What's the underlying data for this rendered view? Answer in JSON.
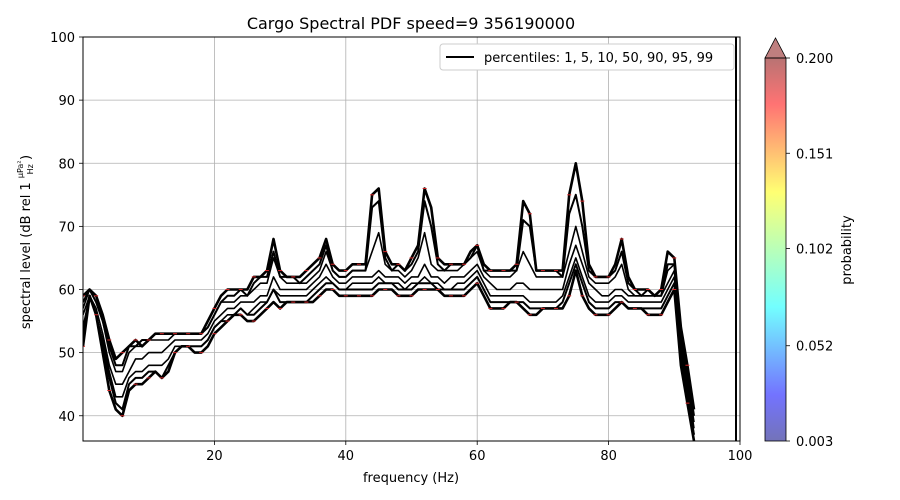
{
  "chart_data": {
    "type": "line",
    "title": "Cargo Spectral PDF speed=9 356190000",
    "xlabel": "frequency (Hz)",
    "ylabel": "spectral level (dB rel 1 μPa²/Hz)",
    "ylabel_prefix": "spectral level (dB rel 1",
    "ylabel_frac_num": "μPa²",
    "ylabel_frac_den": "Hz",
    "ylabel_suffix": ")",
    "xlim": [
      0,
      100
    ],
    "ylim": [
      36,
      100
    ],
    "xticks": [
      20,
      40,
      60,
      80,
      100
    ],
    "yticks": [
      40,
      50,
      60,
      70,
      80,
      90,
      100
    ],
    "grid": true,
    "legend": {
      "position": "top-right",
      "label": "percentiles: 1, 5, 10, 50, 90, 95, 99"
    },
    "colorbar": {
      "label": "probability",
      "ticks": [
        "0.003",
        "0.052",
        "0.102",
        "0.151",
        "0.200"
      ],
      "min": 0.003,
      "max": 0.2,
      "colormap": "jet",
      "extend": "max"
    },
    "x": [
      0,
      1,
      2,
      3,
      4,
      5,
      6,
      7,
      8,
      9,
      10,
      11,
      12,
      13,
      14,
      15,
      16,
      17,
      18,
      19,
      20,
      21,
      22,
      23,
      24,
      25,
      26,
      27,
      28,
      29,
      30,
      31,
      32,
      33,
      34,
      35,
      36,
      37,
      38,
      39,
      40,
      41,
      42,
      43,
      44,
      45,
      46,
      47,
      48,
      49,
      50,
      51,
      52,
      53,
      54,
      55,
      56,
      57,
      58,
      59,
      60,
      61,
      62,
      63,
      64,
      65,
      66,
      67,
      68,
      69,
      70,
      71,
      72,
      73,
      74,
      75,
      76,
      77,
      78,
      79,
      80,
      81,
      82,
      83,
      84,
      85,
      86,
      87,
      88,
      89,
      90,
      91,
      92,
      93
    ],
    "series": [
      {
        "name": "p1",
        "values": [
          51,
          59,
          56,
          50,
          44,
          41,
          40,
          44,
          45,
          45,
          46,
          47,
          46,
          47,
          50,
          51,
          51,
          50,
          50,
          51,
          53,
          54,
          55,
          56,
          56,
          55,
          55,
          56,
          57,
          58,
          57,
          58,
          58,
          58,
          58,
          58,
          59,
          60,
          60,
          59,
          59,
          59,
          59,
          59,
          59,
          60,
          60,
          60,
          59,
          59,
          59,
          60,
          60,
          60,
          60,
          59,
          59,
          59,
          59,
          60,
          61,
          59,
          57,
          57,
          57,
          58,
          58,
          57,
          56,
          56,
          57,
          57,
          57,
          57,
          59,
          63,
          59,
          57,
          56,
          56,
          56,
          57,
          58,
          57,
          57,
          57,
          56,
          56,
          56,
          58,
          60,
          48,
          42,
          36
        ]
      },
      {
        "name": "p5",
        "values": [
          53,
          59,
          56,
          51,
          46,
          42,
          41,
          45,
          46,
          46,
          47,
          47,
          46,
          48,
          50,
          51,
          51,
          51,
          51,
          52,
          54,
          55,
          55,
          56,
          57,
          56,
          56,
          57,
          58,
          60,
          58,
          58,
          58,
          58,
          58,
          59,
          60,
          61,
          61,
          60,
          60,
          60,
          60,
          60,
          60,
          61,
          61,
          61,
          60,
          60,
          60,
          61,
          61,
          61,
          60,
          60,
          60,
          60,
          60,
          61,
          62,
          60,
          58,
          58,
          58,
          58,
          58,
          58,
          57,
          57,
          57,
          57,
          57,
          58,
          61,
          64,
          61,
          58,
          57,
          57,
          57,
          58,
          58,
          57,
          57,
          57,
          57,
          57,
          57,
          59,
          61,
          49,
          43,
          37
        ]
      },
      {
        "name": "p10",
        "values": [
          54,
          59,
          56,
          52,
          47,
          43,
          43,
          46,
          47,
          47,
          48,
          48,
          48,
          49,
          51,
          51,
          51,
          51,
          51,
          52,
          54,
          55,
          56,
          56,
          57,
          56,
          57,
          58,
          58,
          60,
          59,
          59,
          59,
          59,
          59,
          60,
          61,
          62,
          61,
          60,
          60,
          61,
          61,
          61,
          61,
          62,
          61,
          61,
          61,
          60,
          61,
          61,
          62,
          61,
          61,
          60,
          60,
          61,
          61,
          62,
          63,
          61,
          59,
          59,
          59,
          59,
          59,
          59,
          58,
          58,
          58,
          58,
          58,
          59,
          62,
          65,
          62,
          59,
          58,
          58,
          58,
          59,
          59,
          58,
          58,
          58,
          58,
          58,
          58,
          60,
          62,
          50,
          44,
          37
        ]
      },
      {
        "name": "p50",
        "values": [
          56,
          59,
          57,
          53,
          48,
          45,
          45,
          47,
          49,
          49,
          50,
          50,
          50,
          51,
          52,
          52,
          52,
          52,
          52,
          53,
          55,
          56,
          57,
          57,
          58,
          58,
          58,
          59,
          59,
          62,
          60,
          60,
          60,
          60,
          60,
          61,
          62,
          64,
          62,
          61,
          61,
          62,
          62,
          62,
          62,
          63,
          62,
          62,
          62,
          61,
          62,
          62,
          64,
          62,
          62,
          61,
          62,
          62,
          62,
          63,
          64,
          62,
          61,
          60,
          60,
          60,
          61,
          61,
          60,
          60,
          60,
          60,
          60,
          60,
          64,
          67,
          64,
          61,
          60,
          59,
          59,
          60,
          60,
          59,
          59,
          59,
          59,
          59,
          59,
          61,
          63,
          51,
          45,
          38
        ]
      },
      {
        "name": "p90",
        "values": [
          57,
          60,
          58,
          55,
          50,
          47,
          47,
          50,
          51,
          51,
          52,
          52,
          52,
          52,
          53,
          53,
          53,
          53,
          53,
          54,
          56,
          58,
          58,
          58,
          59,
          59,
          60,
          61,
          61,
          65,
          62,
          61,
          61,
          61,
          61,
          62,
          63,
          66,
          63,
          62,
          62,
          63,
          63,
          63,
          66,
          69,
          64,
          63,
          63,
          62,
          63,
          65,
          69,
          64,
          63,
          63,
          63,
          63,
          64,
          65,
          66,
          63,
          62,
          62,
          62,
          62,
          63,
          66,
          64,
          62,
          62,
          62,
          62,
          62,
          66,
          70,
          66,
          62,
          61,
          61,
          61,
          62,
          64,
          60,
          59,
          59,
          59,
          59,
          59,
          63,
          64,
          52,
          46,
          39
        ]
      },
      {
        "name": "p95",
        "values": [
          58,
          60,
          58,
          55,
          51,
          48,
          48,
          51,
          51,
          52,
          52,
          53,
          53,
          53,
          53,
          53,
          53,
          53,
          53,
          54,
          56,
          58,
          59,
          59,
          60,
          59,
          61,
          62,
          62,
          66,
          62,
          62,
          62,
          61,
          62,
          63,
          64,
          67,
          63,
          62,
          62,
          63,
          63,
          63,
          73,
          74,
          65,
          63,
          64,
          63,
          64,
          66,
          74,
          70,
          64,
          63,
          64,
          64,
          64,
          65,
          67,
          63,
          63,
          63,
          63,
          63,
          63,
          71,
          70,
          63,
          63,
          63,
          63,
          62,
          72,
          75,
          70,
          63,
          62,
          62,
          62,
          63,
          66,
          61,
          60,
          59,
          60,
          59,
          59,
          64,
          64,
          53,
          47,
          40
        ]
      },
      {
        "name": "p99",
        "values": [
          59,
          60,
          59,
          56,
          52,
          49,
          50,
          51,
          52,
          51,
          52,
          53,
          53,
          53,
          53,
          53,
          53,
          53,
          53,
          55,
          57,
          59,
          60,
          60,
          60,
          60,
          62,
          62,
          63,
          68,
          63,
          62,
          62,
          62,
          63,
          64,
          65,
          68,
          64,
          63,
          63,
          64,
          64,
          64,
          75,
          76,
          66,
          64,
          64,
          63,
          65,
          67,
          76,
          73,
          65,
          64,
          64,
          64,
          64,
          66,
          67,
          64,
          63,
          63,
          63,
          63,
          64,
          74,
          72,
          63,
          63,
          63,
          63,
          63,
          75,
          80,
          74,
          64,
          62,
          62,
          62,
          64,
          68,
          62,
          60,
          60,
          60,
          59,
          60,
          66,
          65,
          54,
          48,
          41
        ]
      }
    ]
  }
}
